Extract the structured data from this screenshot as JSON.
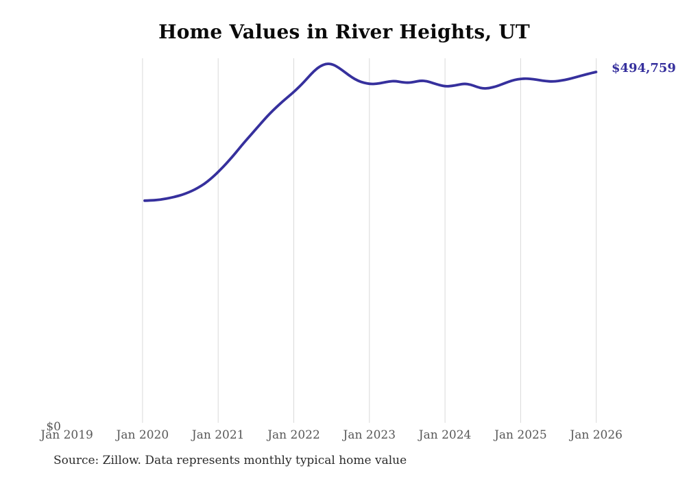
{
  "chart": {
    "title": "Home Values in River Heights, UT",
    "y_zero_label": "$0",
    "end_label": "$494,759",
    "source_note": "Source: Zillow. Data represents monthly typical home value",
    "line_color": "#36309d",
    "gridline_color": "#d9d9d9",
    "title_color": "#0a0a0a",
    "axis_label_color": "#585858"
  },
  "chart_data": {
    "type": "line",
    "title": "Home Values in River Heights, UT",
    "xlabel": "",
    "ylabel": "",
    "x_tick_labels": [
      "Jan 2019",
      "Jan 2020",
      "Jan 2021",
      "Jan 2022",
      "Jan 2023",
      "Jan 2024",
      "Jan 2025",
      "Jan 2026"
    ],
    "y_tick_labels": [
      "$0"
    ],
    "ylim": [
      0,
      514000
    ],
    "grid": "vertical-only",
    "gridline_months": [
      "2020-01",
      "2021-01",
      "2022-01",
      "2023-01",
      "2024-01",
      "2025-01",
      "2026-01"
    ],
    "legend": "none",
    "annotations": [
      {
        "text": "$494,759",
        "position": "end-of-line"
      }
    ],
    "series": [
      {
        "name": "Monthly typical home value",
        "x": [
          "2020-01",
          "2020-02",
          "2020-03",
          "2020-04",
          "2020-05",
          "2020-06",
          "2020-07",
          "2020-08",
          "2020-09",
          "2020-10",
          "2020-11",
          "2020-12",
          "2021-01",
          "2021-02",
          "2021-03",
          "2021-04",
          "2021-05",
          "2021-06",
          "2021-07",
          "2021-08",
          "2021-09",
          "2021-10",
          "2021-11",
          "2021-12",
          "2022-01",
          "2022-02",
          "2022-03",
          "2022-04",
          "2022-05",
          "2022-06",
          "2022-07",
          "2022-08",
          "2022-09",
          "2022-10",
          "2022-11",
          "2022-12",
          "2023-01",
          "2023-02",
          "2023-03",
          "2023-04",
          "2023-05",
          "2023-06",
          "2023-07",
          "2023-08",
          "2023-09",
          "2023-10",
          "2023-11",
          "2023-12",
          "2024-01",
          "2024-02",
          "2024-03",
          "2024-04",
          "2024-05",
          "2024-06",
          "2024-07",
          "2024-08",
          "2024-09",
          "2024-10",
          "2024-11",
          "2024-12",
          "2025-01",
          "2025-02",
          "2025-03",
          "2025-04",
          "2025-05",
          "2025-06",
          "2025-07",
          "2025-08",
          "2025-09",
          "2025-10",
          "2025-11",
          "2025-12",
          "2026-01"
        ],
        "values": [
          315000,
          315300,
          316000,
          317200,
          318800,
          320800,
          323300,
          326500,
          330500,
          335500,
          341500,
          349000,
          357500,
          366500,
          376500,
          387000,
          397500,
          407500,
          417500,
          427500,
          437000,
          445500,
          453500,
          461000,
          468500,
          477000,
          486500,
          496000,
          503000,
          506500,
          505500,
          500500,
          494000,
          487500,
          482500,
          479500,
          477800,
          478200,
          479800,
          481600,
          482000,
          480500,
          479600,
          480800,
          482600,
          482000,
          479200,
          476400,
          474600,
          475200,
          476800,
          478400,
          477200,
          473800,
          471600,
          472200,
          474400,
          477600,
          481000,
          483800,
          485200,
          485600,
          484600,
          483200,
          481900,
          481400,
          482100,
          483600,
          485600,
          488000,
          490400,
          492600,
          494759
        ],
        "final_value": 494759
      }
    ]
  }
}
